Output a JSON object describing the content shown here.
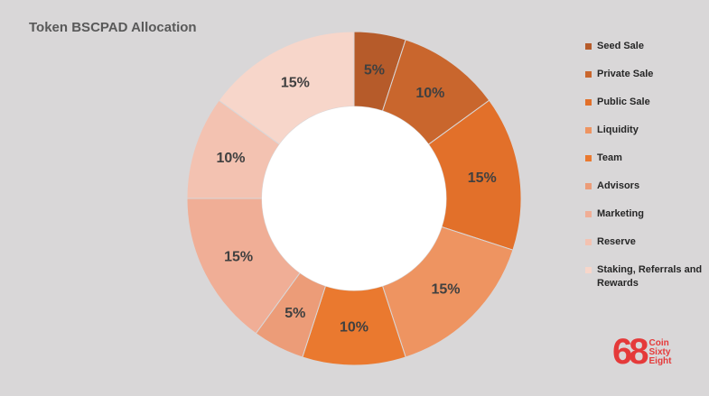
{
  "chart_data": {
    "type": "donut",
    "title": "Token BSCPAD Allocation",
    "categories": [
      "Seed Sale",
      "Private Sale",
      "Public Sale",
      "Liquidity",
      "Team",
      "Advisors",
      "Marketing",
      "Reserve",
      "Staking, Referrals and Rewards"
    ],
    "values": [
      5,
      10,
      15,
      15,
      10,
      5,
      15,
      10,
      15
    ],
    "value_labels": [
      "5%",
      "10%",
      "15%",
      "15%",
      "10%",
      "5%",
      "15%",
      "10%",
      "15%"
    ],
    "colors": [
      "#b65b2a",
      "#c9662d",
      "#e2702a",
      "#ee9461",
      "#ea792f",
      "#ec9c78",
      "#f0ae96",
      "#f3c2b1",
      "#f7d6ca"
    ],
    "legend": "right"
  },
  "logo": {
    "mark": "68",
    "lines": [
      "Coin",
      "Sixty",
      "Eight"
    ]
  }
}
